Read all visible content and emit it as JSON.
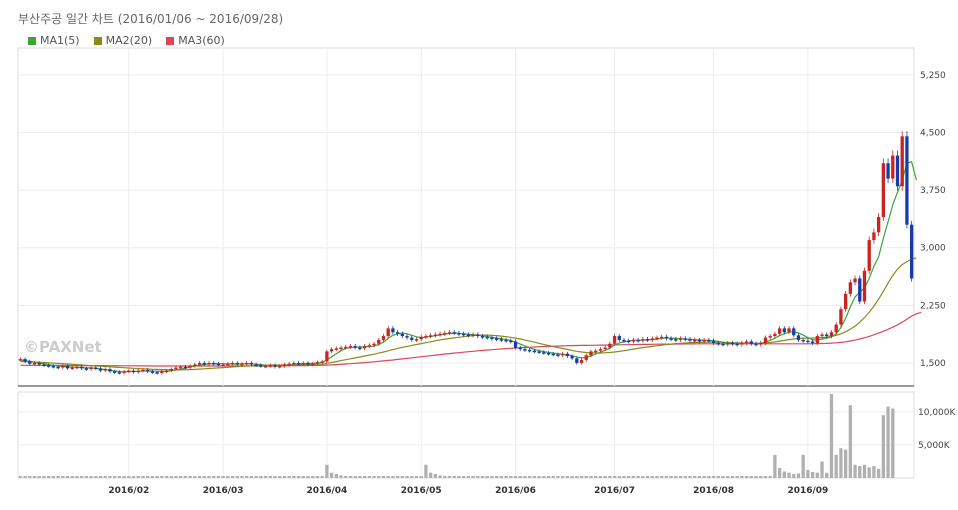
{
  "page": {
    "title": "부산주공 일간 차트 (2016/01/06 ~ 2016/09/28)",
    "watermark": "©PAXNet"
  },
  "legend": [
    {
      "label": "MA1(5)",
      "color": "#3aa63a"
    },
    {
      "label": "MA2(20)",
      "color": "#8a8a1a"
    },
    {
      "label": "MA3(60)",
      "color": "#d9475a"
    }
  ],
  "colors": {
    "up": "#cc2222",
    "down": "#1a3aa8",
    "volume": "#b0b0b0"
  },
  "chart_data": [
    {
      "type": "candlestick",
      "title": "부산주공 일간 차트 (2016/01/06 ~ 2016/09/28)",
      "ylim": [
        1200,
        5600
      ],
      "yticks": [
        "1,500",
        "2,250",
        "3,000",
        "3,750",
        "4,500",
        "5,250"
      ],
      "ytick_values": [
        1500,
        2250,
        3000,
        3750,
        4500,
        5250
      ],
      "x_month_labels": [
        "2016/02",
        "2016/03",
        "2016/04",
        "2016/05",
        "2016/06",
        "2016/07",
        "2016/08",
        "2016/09"
      ],
      "x_month_index": [
        23,
        43,
        65,
        85,
        105,
        126,
        147,
        167
      ],
      "close": [
        1550,
        1520,
        1490,
        1500,
        1480,
        1470,
        1460,
        1450,
        1440,
        1460,
        1430,
        1440,
        1450,
        1430,
        1420,
        1440,
        1430,
        1400,
        1420,
        1390,
        1380,
        1370,
        1390,
        1400,
        1380,
        1400,
        1410,
        1390,
        1380,
        1370,
        1390,
        1400,
        1420,
        1440,
        1450,
        1440,
        1460,
        1480,
        1500,
        1490,
        1500,
        1490,
        1480,
        1480,
        1490,
        1500,
        1480,
        1490,
        1500,
        1480,
        1470,
        1460,
        1460,
        1470,
        1450,
        1460,
        1480,
        1490,
        1500,
        1490,
        1500,
        1480,
        1490,
        1510,
        1520,
        1650,
        1680,
        1690,
        1700,
        1710,
        1720,
        1700,
        1690,
        1720,
        1730,
        1750,
        1800,
        1850,
        1950,
        1900,
        1880,
        1850,
        1830,
        1800,
        1810,
        1840,
        1850,
        1860,
        1870,
        1880,
        1890,
        1900,
        1890,
        1880,
        1870,
        1860,
        1870,
        1850,
        1840,
        1830,
        1820,
        1810,
        1800,
        1790,
        1780,
        1700,
        1680,
        1670,
        1660,
        1650,
        1640,
        1630,
        1620,
        1610,
        1600,
        1620,
        1590,
        1560,
        1500,
        1540,
        1600,
        1650,
        1660,
        1680,
        1700,
        1750,
        1850,
        1800,
        1790,
        1780,
        1800,
        1790,
        1810,
        1800,
        1820,
        1830,
        1840,
        1820,
        1810,
        1800,
        1820,
        1810,
        1790,
        1800,
        1780,
        1800,
        1790,
        1760,
        1750,
        1740,
        1760,
        1750,
        1740,
        1760,
        1780,
        1750,
        1740,
        1760,
        1830,
        1850,
        1880,
        1950,
        1900,
        1950,
        1860,
        1800,
        1790,
        1780,
        1760,
        1850,
        1870,
        1850,
        1900,
        2000,
        2200,
        2400,
        2550,
        2600,
        2300,
        2700,
        3100,
        3200,
        3400,
        4100,
        3900,
        4200,
        3800,
        4450,
        3300,
        2600
      ],
      "ma1_5": [
        1540,
        1530,
        1520,
        1510,
        1500,
        1490,
        1480,
        1470,
        1460,
        1455,
        1450,
        1445,
        1445,
        1440,
        1435,
        1435,
        1430,
        1420,
        1415,
        1405,
        1395,
        1390,
        1385,
        1388,
        1390,
        1392,
        1395,
        1395,
        1395,
        1392,
        1390,
        1392,
        1398,
        1408,
        1420,
        1432,
        1445,
        1460,
        1472,
        1480,
        1488,
        1492,
        1492,
        1490,
        1488,
        1486,
        1486,
        1488,
        1490,
        1488,
        1484,
        1478,
        1472,
        1468,
        1464,
        1464,
        1468,
        1474,
        1482,
        1488,
        1492,
        1494,
        1496,
        1500,
        1504,
        1540,
        1580,
        1620,
        1660,
        1690,
        1700,
        1705,
        1708,
        1712,
        1715,
        1720,
        1740,
        1770,
        1820,
        1860,
        1880,
        1890,
        1880,
        1860,
        1840,
        1830,
        1835,
        1845,
        1855,
        1865,
        1875,
        1885,
        1888,
        1886,
        1880,
        1874,
        1868,
        1862,
        1854,
        1844,
        1834,
        1824,
        1814,
        1804,
        1794,
        1770,
        1746,
        1722,
        1698,
        1676,
        1660,
        1648,
        1638,
        1628,
        1620,
        1612,
        1604,
        1594,
        1576,
        1566,
        1572,
        1592,
        1616,
        1640,
        1664,
        1692,
        1734,
        1760,
        1774,
        1786,
        1796,
        1796,
        1798,
        1800,
        1804,
        1810,
        1820,
        1826,
        1824,
        1820,
        1816,
        1812,
        1808,
        1804,
        1800,
        1796,
        1794,
        1788,
        1780,
        1770,
        1760,
        1754,
        1748,
        1750,
        1756,
        1758,
        1756,
        1756,
        1772,
        1794,
        1822,
        1856,
        1880,
        1900,
        1906,
        1890,
        1862,
        1830,
        1800,
        1800,
        1810,
        1822,
        1838,
        1880,
        1960,
        2080,
        2230,
        2360,
        2420,
        2480,
        2600,
        2760,
        2880,
        3120,
        3340,
        3560,
        3720,
        3880,
        4100,
        4120,
        3880
      ],
      "ma2_20": [
        1520,
        1518,
        1515,
        1512,
        1509,
        1506,
        1502,
        1498,
        1494,
        1490,
        1486,
        1482,
        1478,
        1474,
        1470,
        1466,
        1462,
        1458,
        1454,
        1450,
        1446,
        1442,
        1438,
        1434,
        1430,
        1427,
        1424,
        1421,
        1418,
        1416,
        1414,
        1412,
        1411,
        1410,
        1410,
        1411,
        1413,
        1416,
        1420,
        1424,
        1428,
        1432,
        1436,
        1440,
        1444,
        1448,
        1452,
        1456,
        1460,
        1463,
        1466,
        1468,
        1470,
        1472,
        1473,
        1474,
        1475,
        1476,
        1477,
        1478,
        1479,
        1480,
        1481,
        1482,
        1484,
        1495,
        1506,
        1518,
        1530,
        1542,
        1554,
        1566,
        1578,
        1590,
        1602,
        1614,
        1628,
        1642,
        1658,
        1674,
        1690,
        1704,
        1716,
        1728,
        1740,
        1752,
        1764,
        1776,
        1788,
        1800,
        1810,
        1818,
        1826,
        1834,
        1842,
        1850,
        1856,
        1860,
        1862,
        1862,
        1860,
        1856,
        1850,
        1842,
        1834,
        1824,
        1812,
        1798,
        1784,
        1770,
        1756,
        1742,
        1728,
        1714,
        1700,
        1688,
        1676,
        1664,
        1652,
        1642,
        1636,
        1632,
        1630,
        1630,
        1632,
        1636,
        1642,
        1650,
        1660,
        1670,
        1680,
        1690,
        1700,
        1708,
        1716,
        1724,
        1732,
        1740,
        1746,
        1752,
        1756,
        1760,
        1764,
        1766,
        1768,
        1770,
        1770,
        1770,
        1769,
        1768,
        1766,
        1764,
        1762,
        1760,
        1758,
        1756,
        1756,
        1757,
        1760,
        1766,
        1774,
        1784,
        1794,
        1804,
        1812,
        1818,
        1822,
        1824,
        1824,
        1826,
        1830,
        1836,
        1846,
        1860,
        1880,
        1906,
        1940,
        1980,
        2030,
        2090,
        2160,
        2240,
        2330,
        2430,
        2540,
        2640,
        2720,
        2780,
        2820,
        2850,
        2870
      ],
      "ma3_60": [
        1470,
        1470,
        1470,
        1470,
        1469,
        1469,
        1469,
        1468,
        1468,
        1468,
        1467,
        1467,
        1467,
        1466,
        1466,
        1466,
        1465,
        1465,
        1465,
        1464,
        1464,
        1464,
        1463,
        1463,
        1463,
        1462,
        1462,
        1462,
        1461,
        1461,
        1461,
        1460,
        1460,
        1460,
        1460,
        1460,
        1460,
        1460,
        1460,
        1460,
        1460,
        1460,
        1460,
        1460,
        1460,
        1460,
        1460,
        1460,
        1460,
        1460,
        1460,
        1460,
        1460,
        1460,
        1460,
        1461,
        1462,
        1463,
        1464,
        1465,
        1466,
        1467,
        1468,
        1469,
        1470,
        1472,
        1475,
        1478,
        1482,
        1486,
        1490,
        1495,
        1500,
        1505,
        1510,
        1515,
        1521,
        1527,
        1533,
        1539,
        1546,
        1553,
        1560,
        1567,
        1574,
        1581,
        1588,
        1595,
        1602,
        1609,
        1616,
        1622,
        1628,
        1634,
        1640,
        1646,
        1652,
        1658,
        1663,
        1668,
        1673,
        1678,
        1683,
        1687,
        1691,
        1695,
        1699,
        1702,
        1705,
        1708,
        1711,
        1714,
        1716,
        1718,
        1720,
        1722,
        1724,
        1726,
        1727,
        1728,
        1729,
        1730,
        1731,
        1732,
        1733,
        1734,
        1735,
        1736,
        1737,
        1738,
        1739,
        1740,
        1741,
        1742,
        1743,
        1744,
        1745,
        1746,
        1746,
        1747,
        1747,
        1748,
        1748,
        1748,
        1749,
        1749,
        1749,
        1749,
        1749,
        1749,
        1749,
        1749,
        1749,
        1749,
        1749,
        1749,
        1749,
        1749,
        1749,
        1749,
        1749,
        1749,
        1749,
        1749,
        1749,
        1750,
        1750,
        1750,
        1751,
        1752,
        1753,
        1755,
        1758,
        1762,
        1768,
        1776,
        1786,
        1798,
        1812,
        1828,
        1846,
        1866,
        1888,
        1912,
        1938,
        1966,
        1996,
        2030,
        2070,
        2110,
        2140,
        2160
      ]
    },
    {
      "type": "bar",
      "title": "Volume",
      "yticks": [
        "5,000K",
        "10,000K"
      ],
      "ytick_values": [
        5000,
        10000
      ],
      "ylim": [
        0,
        13000
      ],
      "values": [
        300,
        300,
        300,
        300,
        300,
        300,
        300,
        300,
        300,
        300,
        300,
        300,
        300,
        300,
        300,
        300,
        300,
        300,
        300,
        300,
        300,
        300,
        300,
        300,
        300,
        300,
        300,
        300,
        300,
        300,
        300,
        300,
        300,
        300,
        300,
        300,
        300,
        300,
        300,
        300,
        300,
        300,
        300,
        300,
        300,
        300,
        300,
        300,
        300,
        300,
        300,
        300,
        300,
        300,
        300,
        300,
        300,
        300,
        300,
        300,
        300,
        300,
        300,
        300,
        300,
        2000,
        800,
        600,
        400,
        300,
        300,
        300,
        300,
        300,
        300,
        300,
        300,
        300,
        300,
        300,
        300,
        300,
        300,
        300,
        300,
        300,
        2000,
        800,
        600,
        400,
        300,
        300,
        300,
        300,
        300,
        300,
        300,
        300,
        300,
        300,
        300,
        300,
        300,
        300,
        300,
        300,
        300,
        300,
        300,
        300,
        300,
        300,
        300,
        300,
        300,
        300,
        300,
        300,
        300,
        300,
        300,
        300,
        300,
        300,
        300,
        300,
        300,
        300,
        300,
        300,
        300,
        300,
        300,
        300,
        300,
        300,
        300,
        300,
        300,
        300,
        300,
        300,
        300,
        300,
        300,
        300,
        300,
        300,
        300,
        300,
        300,
        300,
        300,
        300,
        300,
        300,
        300,
        300,
        300,
        300,
        3500,
        1500,
        1000,
        800,
        600,
        700,
        3500,
        1200,
        900,
        800,
        2500,
        800,
        12700,
        3500,
        4500,
        4300,
        11000,
        2000,
        1800,
        2000,
        1600,
        1800,
        1400,
        9500,
        10800,
        10500
      ]
    }
  ]
}
